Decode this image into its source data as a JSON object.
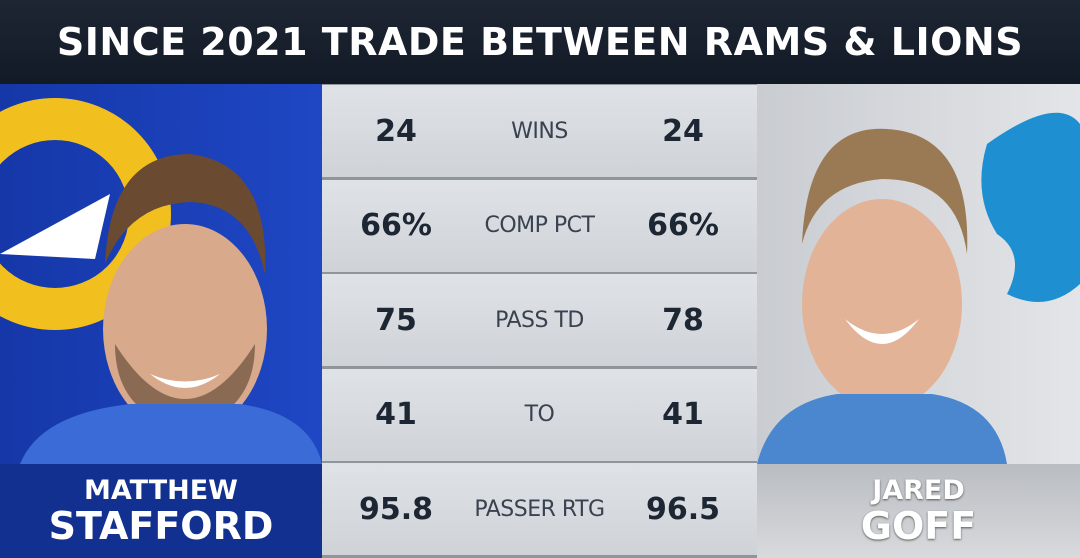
{
  "header": {
    "title": "SINCE 2021 TRADE BETWEEN RAMS & LIONS"
  },
  "left_player": {
    "first_name": "MATTHEW",
    "last_name": "STAFFORD"
  },
  "right_player": {
    "first_name": "JARED",
    "last_name": "GOFF"
  },
  "table": {
    "rows": [
      {
        "label": "WINS",
        "left": "24",
        "right": "24"
      },
      {
        "label": "COMP PCT",
        "left": "66%",
        "right": "66%"
      },
      {
        "label": "PASS TD",
        "left": "75",
        "right": "78"
      },
      {
        "label": "TO",
        "left": "41",
        "right": "41"
      },
      {
        "label": "PASSER RTG",
        "left": "95.8",
        "right": "96.5"
      }
    ]
  }
}
